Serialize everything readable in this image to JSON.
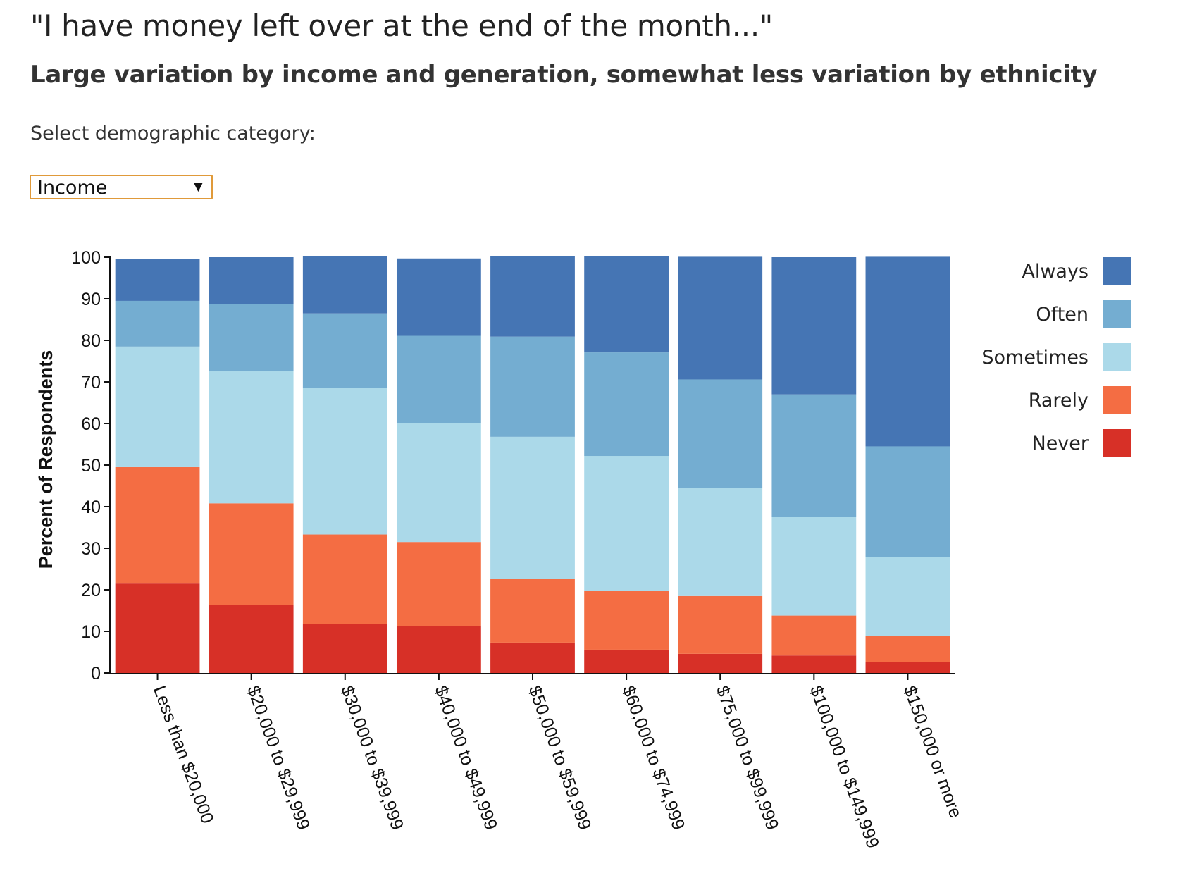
{
  "header": {
    "title": "\"I have money left over at the end of the month...\"",
    "subtitle": "Large variation by income and generation, somewhat less variation by ethnicity"
  },
  "selector": {
    "label": "Select demographic category:",
    "value": "Income",
    "arrow_icon": "triangle-down-icon"
  },
  "chart_data": {
    "type": "bar",
    "stacked": true,
    "ylabel": "Percent of Respondents",
    "ylim": [
      0,
      100
    ],
    "yticks": [
      "0",
      "10",
      "20",
      "30",
      "40",
      "50",
      "60",
      "70",
      "80",
      "90",
      "100"
    ],
    "legend_position": "right",
    "categories": [
      "Less than $20,000",
      "$20,000 to $29,999",
      "$30,000 to $39,999",
      "$40,000 to $49,999",
      "$50,000 to $59,999",
      "$60,000 to $74,999",
      "$75,000 to $99,999",
      "$100,000 to $149,999",
      "$150,000 or more"
    ],
    "series": [
      {
        "name": "Never",
        "color": "#d73027",
        "values": [
          21.5,
          16.3,
          11.8,
          11.2,
          7.3,
          5.6,
          4.6,
          4.2,
          2.6
        ]
      },
      {
        "name": "Rarely",
        "color": "#f46d43",
        "values": [
          28.0,
          24.5,
          21.5,
          20.3,
          15.4,
          14.2,
          13.9,
          9.6,
          6.3
        ]
      },
      {
        "name": "Sometimes",
        "color": "#abd9e9",
        "values": [
          29.0,
          31.8,
          35.2,
          28.6,
          34.1,
          32.4,
          26.0,
          23.8,
          19.0
        ]
      },
      {
        "name": "Often",
        "color": "#74add1",
        "values": [
          11.0,
          16.2,
          18.0,
          21.0,
          24.1,
          24.9,
          26.1,
          29.4,
          26.6
        ]
      },
      {
        "name": "Always",
        "color": "#4575b4",
        "values": [
          10.0,
          11.2,
          13.7,
          18.6,
          19.3,
          23.1,
          29.5,
          33.0,
          45.6
        ]
      }
    ],
    "legend_order": [
      "Always",
      "Often",
      "Sometimes",
      "Rarely",
      "Never"
    ]
  }
}
